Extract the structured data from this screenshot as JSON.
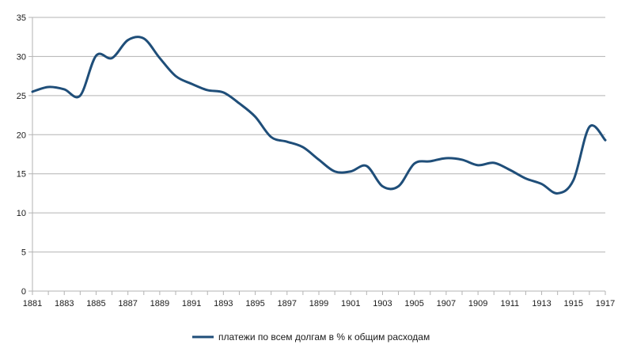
{
  "chart_data": {
    "type": "line",
    "title": "",
    "xlabel": "",
    "ylabel": "",
    "x_tick_labels": [
      "1881",
      "1883",
      "1885",
      "1887",
      "1889",
      "1891",
      "1893",
      "1895",
      "1897",
      "1899",
      "1901",
      "1903",
      "1905",
      "1907",
      "1909",
      "1911",
      "1913",
      "1915",
      "1917"
    ],
    "y_tick_labels": [
      "0",
      "5",
      "10",
      "15",
      "20",
      "25",
      "30",
      "35"
    ],
    "ylim": [
      0,
      35
    ],
    "xlim": [
      1881,
      1917
    ],
    "grid": "horizontal",
    "legend_position": "bottom",
    "series": [
      {
        "name": "платежи по всем долгам в % к общим расходам",
        "color": "#1f4e79",
        "x": [
          1881,
          1882,
          1883,
          1884,
          1885,
          1886,
          1887,
          1888,
          1889,
          1890,
          1891,
          1892,
          1893,
          1894,
          1895,
          1896,
          1897,
          1898,
          1899,
          1900,
          1901,
          1902,
          1903,
          1904,
          1905,
          1906,
          1907,
          1908,
          1909,
          1910,
          1911,
          1912,
          1913,
          1914,
          1915,
          1916,
          1917
        ],
        "y": [
          25.5,
          26.1,
          25.8,
          25.0,
          30.1,
          29.8,
          32.1,
          32.3,
          29.8,
          27.5,
          26.5,
          25.7,
          25.4,
          24.0,
          22.3,
          19.7,
          19.1,
          18.4,
          16.8,
          15.3,
          15.3,
          16.0,
          13.4,
          13.4,
          16.3,
          16.6,
          17.0,
          16.8,
          16.1,
          16.4,
          15.5,
          14.4,
          13.7,
          12.5,
          14.2,
          21.0,
          19.3
        ]
      }
    ]
  }
}
